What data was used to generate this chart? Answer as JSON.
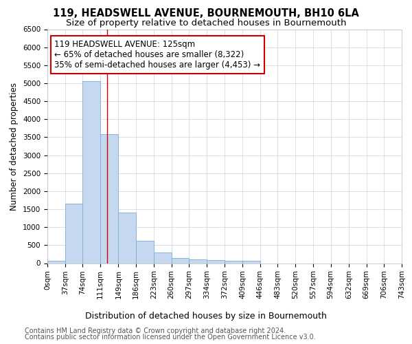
{
  "title": "119, HEADSWELL AVENUE, BOURNEMOUTH, BH10 6LA",
  "subtitle": "Size of property relative to detached houses in Bournemouth",
  "xlabel": "Distribution of detached houses by size in Bournemouth",
  "ylabel": "Number of detached properties",
  "bar_color": "#c5d8f0",
  "bar_edge_color": "#7aadd4",
  "bar_heights": [
    75,
    1650,
    5060,
    3580,
    1400,
    620,
    290,
    140,
    110,
    80,
    60,
    60,
    0,
    0,
    0,
    0,
    0,
    0,
    0,
    0
  ],
  "bin_edges": [
    0,
    37,
    74,
    111,
    149,
    186,
    223,
    260,
    297,
    334,
    372,
    409,
    446,
    483,
    520,
    557,
    594,
    632,
    669,
    706,
    743
  ],
  "x_tick_labels": [
    "0sqm",
    "37sqm",
    "74sqm",
    "111sqm",
    "149sqm",
    "186sqm",
    "223sqm",
    "260sqm",
    "297sqm",
    "334sqm",
    "372sqm",
    "409sqm",
    "446sqm",
    "483sqm",
    "520sqm",
    "557sqm",
    "594sqm",
    "632sqm",
    "669sqm",
    "706sqm",
    "743sqm"
  ],
  "vline_x": 125,
  "vline_color": "#cc0000",
  "annotation_line1": "119 HEADSWELL AVENUE: 125sqm",
  "annotation_line2": "← 65% of detached houses are smaller (8,322)",
  "annotation_line3": "35% of semi-detached houses are larger (4,453) →",
  "annotation_box_color": "#ffffff",
  "annotation_box_edgecolor": "#cc0000",
  "ylim": [
    0,
    6500
  ],
  "yticks": [
    0,
    500,
    1000,
    1500,
    2000,
    2500,
    3000,
    3500,
    4000,
    4500,
    5000,
    5500,
    6000,
    6500
  ],
  "footer_line1": "Contains HM Land Registry data © Crown copyright and database right 2024.",
  "footer_line2": "Contains public sector information licensed under the Open Government Licence v3.0.",
  "bg_color": "#ffffff",
  "grid_color": "#c8d4e8",
  "title_fontsize": 10.5,
  "subtitle_fontsize": 9.5,
  "ylabel_fontsize": 8.5,
  "xlabel_fontsize": 9,
  "tick_fontsize": 7.5,
  "annotation_fontsize": 8.5,
  "footer_fontsize": 7
}
